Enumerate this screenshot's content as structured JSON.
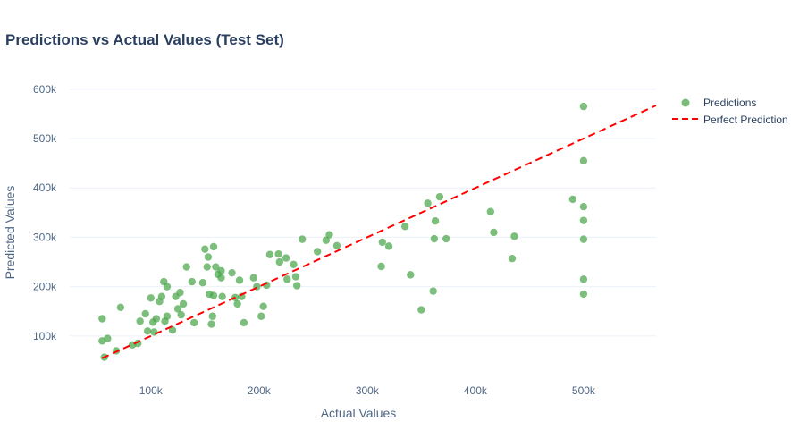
{
  "chart_data": {
    "type": "scatter",
    "title": "Predictions vs Actual Values (Test Set)",
    "xlabel": "Actual Values",
    "ylabel": "Predicted Values",
    "xlim": [
      25000,
      567000
    ],
    "ylim": [
      20000,
      625000
    ],
    "x_ticks": [
      100000,
      200000,
      300000,
      400000,
      500000
    ],
    "x_tick_labels": [
      "100k",
      "200k",
      "300k",
      "400k",
      "500k"
    ],
    "y_ticks": [
      100000,
      200000,
      300000,
      400000,
      500000,
      600000
    ],
    "y_tick_labels": [
      "100k",
      "200k",
      "300k",
      "400k",
      "500k",
      "600k"
    ],
    "grid": true,
    "legend_position": "top-right",
    "colors": {
      "predictions": "#4aa54a",
      "perfect_line": "#ff0000",
      "grid": "#ebf0f8",
      "title": "#2a3f5f",
      "axis_text": "#506784"
    },
    "series": [
      {
        "name": "Predictions",
        "kind": "markers",
        "points": [
          [
            55000,
            90000
          ],
          [
            55000,
            135000
          ],
          [
            57000,
            57000
          ],
          [
            60000,
            95000
          ],
          [
            68000,
            70000
          ],
          [
            72000,
            158000
          ],
          [
            83000,
            82000
          ],
          [
            88000,
            85000
          ],
          [
            90000,
            130000
          ],
          [
            95000,
            145000
          ],
          [
            97000,
            110000
          ],
          [
            100000,
            177000
          ],
          [
            102000,
            128000
          ],
          [
            103000,
            108000
          ],
          [
            105000,
            135000
          ],
          [
            108000,
            170000
          ],
          [
            110000,
            180000
          ],
          [
            112000,
            210000
          ],
          [
            113000,
            130000
          ],
          [
            115000,
            200000
          ],
          [
            115000,
            140000
          ],
          [
            120000,
            112000
          ],
          [
            123000,
            180000
          ],
          [
            125000,
            155000
          ],
          [
            127000,
            188000
          ],
          [
            128000,
            143000
          ],
          [
            130000,
            165000
          ],
          [
            133000,
            240000
          ],
          [
            138000,
            210000
          ],
          [
            140000,
            127000
          ],
          [
            148000,
            208000
          ],
          [
            150000,
            276000
          ],
          [
            152000,
            240000
          ],
          [
            153000,
            260000
          ],
          [
            154000,
            185000
          ],
          [
            156000,
            124000
          ],
          [
            157000,
            140000
          ],
          [
            158000,
            281000
          ],
          [
            158000,
            182000
          ],
          [
            160000,
            240000
          ],
          [
            162000,
            225000
          ],
          [
            165000,
            232000
          ],
          [
            165000,
            218000
          ],
          [
            166000,
            180000
          ],
          [
            175000,
            228000
          ],
          [
            178000,
            178000
          ],
          [
            180000,
            165000
          ],
          [
            182000,
            213000
          ],
          [
            184000,
            180000
          ],
          [
            186000,
            127000
          ],
          [
            195000,
            218000
          ],
          [
            198000,
            200000
          ],
          [
            202000,
            140000
          ],
          [
            204000,
            160000
          ],
          [
            207000,
            203000
          ],
          [
            210000,
            265000
          ],
          [
            218000,
            266000
          ],
          [
            219000,
            250000
          ],
          [
            225000,
            258000
          ],
          [
            226000,
            215000
          ],
          [
            232000,
            245000
          ],
          [
            234000,
            220000
          ],
          [
            235000,
            202000
          ],
          [
            240000,
            296000
          ],
          [
            254000,
            271000
          ],
          [
            262000,
            294000
          ],
          [
            265000,
            305000
          ],
          [
            272000,
            283000
          ],
          [
            313000,
            241000
          ],
          [
            314000,
            290000
          ],
          [
            320000,
            282000
          ],
          [
            335000,
            322000
          ],
          [
            340000,
            224000
          ],
          [
            350000,
            153000
          ],
          [
            356000,
            369000
          ],
          [
            361000,
            191000
          ],
          [
            362000,
            297000
          ],
          [
            363000,
            333000
          ],
          [
            367000,
            382000
          ],
          [
            373000,
            297000
          ],
          [
            414000,
            352000
          ],
          [
            417000,
            310000
          ],
          [
            434000,
            257000
          ],
          [
            436000,
            302000
          ],
          [
            490000,
            377000
          ],
          [
            500000,
            565000
          ],
          [
            500000,
            455000
          ],
          [
            500000,
            362000
          ],
          [
            500000,
            334000
          ],
          [
            500000,
            296000
          ],
          [
            500000,
            215000
          ],
          [
            500000,
            185000
          ]
        ]
      },
      {
        "name": "Perfect Prediction",
        "kind": "dashed-line",
        "points": [
          [
            55000,
            55000
          ],
          [
            567000,
            567000
          ]
        ]
      }
    ]
  }
}
